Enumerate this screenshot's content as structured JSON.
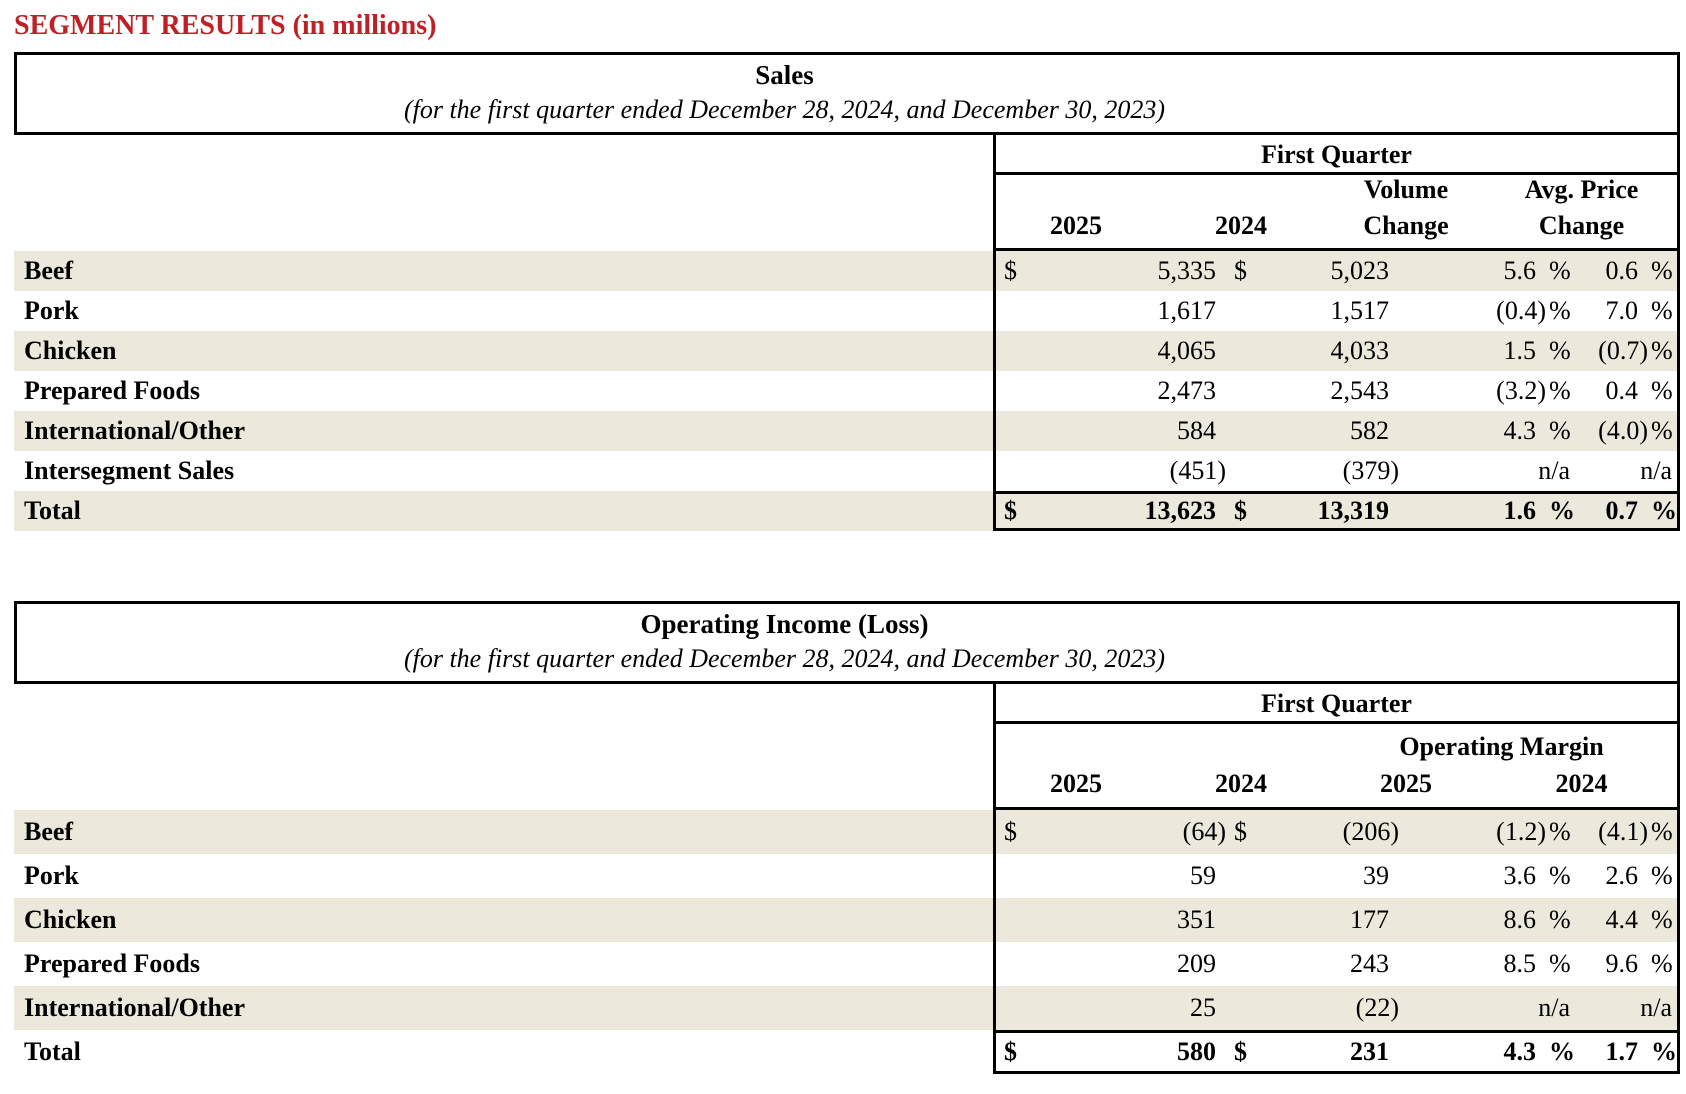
{
  "page_title": "SEGMENT RESULTS (in millions)",
  "colors": {
    "accent": "#be2026",
    "stripe": "#ece8db",
    "border": "#000000"
  },
  "sales": {
    "title": "Sales",
    "subtitle": "(for the first quarter ended December 28, 2024, and December 30, 2023)",
    "group_header": "First Quarter",
    "columns": {
      "y2025": "2025",
      "y2024": "2024",
      "volume": [
        "Volume",
        "Change"
      ],
      "avg_price": [
        "Avg. Price",
        "Change"
      ]
    },
    "rows": [
      {
        "label": "Beef",
        "c1": {
          "cur": "$",
          "v": "5,335"
        },
        "c2": {
          "cur": "$",
          "v": "5,023"
        },
        "c3": {
          "v": "5.6",
          "sym": "%"
        },
        "c4": {
          "v": "0.6",
          "sym": "%"
        }
      },
      {
        "label": "Pork",
        "c1": {
          "cur": "",
          "v": "1,617"
        },
        "c2": {
          "cur": "",
          "v": "1,517"
        },
        "c3": {
          "v": "(0.4)",
          "sym": "%"
        },
        "c4": {
          "v": "7.0",
          "sym": "%"
        }
      },
      {
        "label": "Chicken",
        "c1": {
          "cur": "",
          "v": "4,065"
        },
        "c2": {
          "cur": "",
          "v": "4,033"
        },
        "c3": {
          "v": "1.5",
          "sym": "%"
        },
        "c4": {
          "v": "(0.7)",
          "sym": "%"
        }
      },
      {
        "label": "Prepared Foods",
        "c1": {
          "cur": "",
          "v": "2,473"
        },
        "c2": {
          "cur": "",
          "v": "2,543"
        },
        "c3": {
          "v": "(3.2)",
          "sym": "%"
        },
        "c4": {
          "v": "0.4",
          "sym": "%"
        }
      },
      {
        "label": "International/Other",
        "c1": {
          "cur": "",
          "v": "584"
        },
        "c2": {
          "cur": "",
          "v": "582"
        },
        "c3": {
          "v": "4.3",
          "sym": "%"
        },
        "c4": {
          "v": "(4.0)",
          "sym": "%"
        }
      },
      {
        "label": "Intersegment Sales",
        "c1": {
          "cur": "",
          "v": "(451)"
        },
        "c2": {
          "cur": "",
          "v": "(379)"
        },
        "c3": {
          "v": "n/a",
          "sym": ""
        },
        "c4": {
          "v": "n/a",
          "sym": ""
        }
      },
      {
        "label": "Total",
        "total": true,
        "c1": {
          "cur": "$",
          "v": "13,623"
        },
        "c2": {
          "cur": "$",
          "v": "13,319"
        },
        "c3": {
          "v": "1.6",
          "sym": "%"
        },
        "c4": {
          "v": "0.7",
          "sym": "%"
        }
      }
    ]
  },
  "operating": {
    "title": "Operating Income (Loss)",
    "subtitle": "(for the first quarter ended December 28, 2024, and December 30, 2023)",
    "group_header": "First Quarter",
    "margin_header": "Operating Margin",
    "columns": {
      "y2025_income": "2025",
      "y2024_income": "2024",
      "y2025_margin": "2025",
      "y2024_margin": "2024"
    },
    "rows": [
      {
        "label": "Beef",
        "c1": {
          "cur": "$",
          "v": "(64)"
        },
        "c2": {
          "cur": "$",
          "v": "(206)"
        },
        "c3": {
          "v": "(1.2)",
          "sym": "%"
        },
        "c4": {
          "v": "(4.1)",
          "sym": "%"
        }
      },
      {
        "label": "Pork",
        "c1": {
          "cur": "",
          "v": "59"
        },
        "c2": {
          "cur": "",
          "v": "39"
        },
        "c3": {
          "v": "3.6",
          "sym": "%"
        },
        "c4": {
          "v": "2.6",
          "sym": "%"
        }
      },
      {
        "label": "Chicken",
        "c1": {
          "cur": "",
          "v": "351"
        },
        "c2": {
          "cur": "",
          "v": "177"
        },
        "c3": {
          "v": "8.6",
          "sym": "%"
        },
        "c4": {
          "v": "4.4",
          "sym": "%"
        }
      },
      {
        "label": "Prepared Foods",
        "c1": {
          "cur": "",
          "v": "209"
        },
        "c2": {
          "cur": "",
          "v": "243"
        },
        "c3": {
          "v": "8.5",
          "sym": "%"
        },
        "c4": {
          "v": "9.6",
          "sym": "%"
        }
      },
      {
        "label": "International/Other",
        "c1": {
          "cur": "",
          "v": "25"
        },
        "c2": {
          "cur": "",
          "v": "(22)"
        },
        "c3": {
          "v": "n/a",
          "sym": ""
        },
        "c4": {
          "v": "n/a",
          "sym": ""
        }
      },
      {
        "label": "Total",
        "total": true,
        "c1": {
          "cur": "$",
          "v": "580"
        },
        "c2": {
          "cur": "$",
          "v": "231"
        },
        "c3": {
          "v": "4.3",
          "sym": "%"
        },
        "c4": {
          "v": "1.7",
          "sym": "%"
        }
      }
    ]
  }
}
